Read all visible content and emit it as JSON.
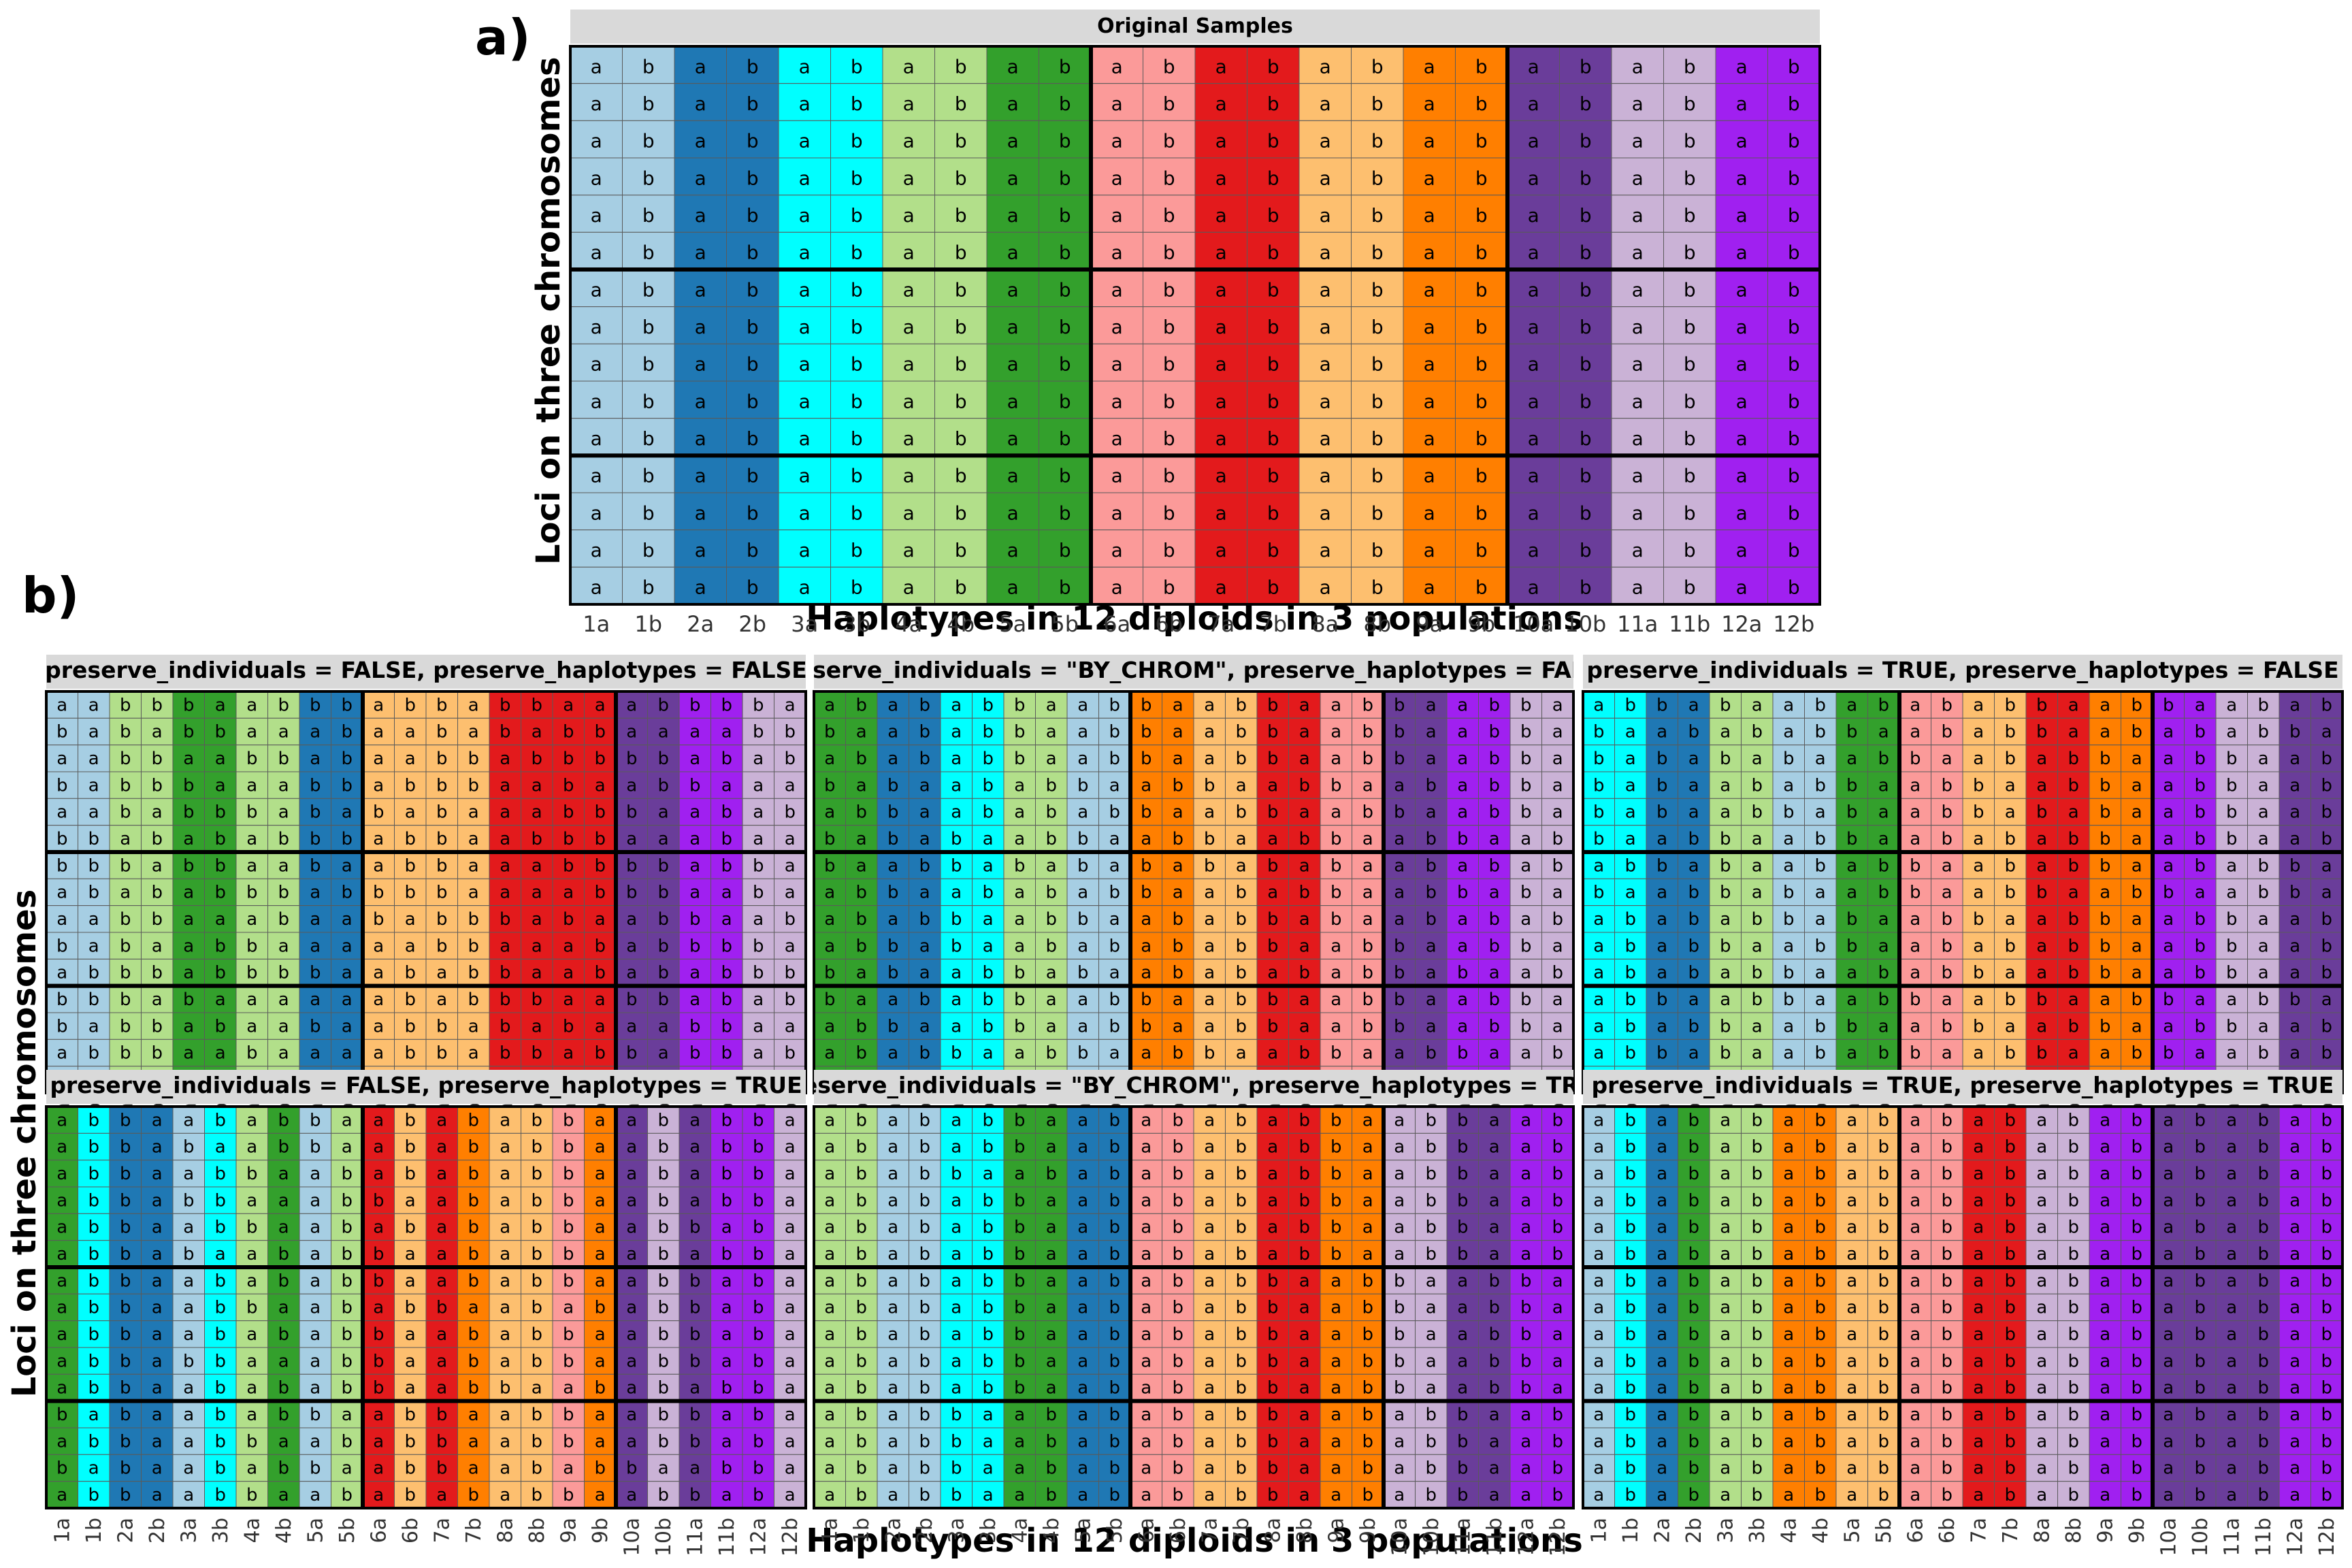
{
  "labels": {
    "panel_a_tag": "a)",
    "panel_b_tag": "b)",
    "xlabel": "Haplotypes in 12 diploids in 3 populations",
    "ylabel": "Loci on three chromosomes"
  },
  "colors": {
    "diploid_fill": [
      "#a6cee3",
      "#1f78b4",
      "#00ffff",
      "#b2df8a",
      "#33a02c",
      "#fb9a99",
      "#e31a1c",
      "#fdbf6f",
      "#ff7f00",
      "#6a3d9a",
      "#cab2d6",
      "#a020f0"
    ],
    "grid_line": "#5a5a5a",
    "thick_line": "#000000",
    "strip_fill": "#d9d9d9"
  },
  "chart_data": [
    {
      "type": "heatmap",
      "panel": "a",
      "title": "Original Samples",
      "xlabel": "Haplotypes in 12 diploids in 3 populations",
      "ylabel": "Loci on three chromosomes",
      "x": [
        "1a",
        "1b",
        "2a",
        "2b",
        "3a",
        "3b",
        "4a",
        "4b",
        "5a",
        "5b",
        "6a",
        "6b",
        "7a",
        "7b",
        "8a",
        "8b",
        "9a",
        "9b",
        "10a",
        "10b",
        "11a",
        "11b",
        "12a",
        "12b"
      ],
      "chromosomes": 3,
      "loci_per_chromosome": [
        6,
        5,
        4
      ],
      "population_boundaries_after_diploid": [
        5,
        9
      ],
      "fill_diploid": [
        1,
        1,
        2,
        2,
        3,
        3,
        4,
        4,
        5,
        5,
        6,
        6,
        7,
        7,
        8,
        8,
        9,
        9,
        10,
        10,
        11,
        11,
        12,
        12
      ],
      "letters": [
        "abababababababababababab",
        "abababababababababababab",
        "abababababababababababab",
        "abababababababababababab",
        "abababababababababababab",
        "abababababababababababab",
        "abababababababababababab",
        "abababababababababababab",
        "abababababababababababab",
        "abababababababababababab",
        "abababababababababababab",
        "abababababababababababab",
        "abababababababababababab",
        "abababababababababababab",
        "abababababababababababab"
      ]
    },
    {
      "type": "heatmap",
      "panel": "b",
      "title": "preserve_individuals = FALSE, preserve_haplotypes = FALSE",
      "x": [
        "1a",
        "1b",
        "2a",
        "2b",
        "3a",
        "3b",
        "4a",
        "4b",
        "5a",
        "5b",
        "6a",
        "6b",
        "7a",
        "7b",
        "8a",
        "8b",
        "9a",
        "9b",
        "10a",
        "10b",
        "11a",
        "11b",
        "12a",
        "12b"
      ],
      "chromosomes": 3,
      "loci_per_chromosome": [
        6,
        5,
        4
      ],
      "population_boundaries_after_diploid": [
        5,
        9
      ],
      "fill_diploid": [
        1,
        1,
        4,
        4,
        5,
        5,
        4,
        4,
        2,
        2,
        8,
        8,
        8,
        8,
        7,
        7,
        7,
        7,
        10,
        10,
        12,
        12,
        11,
        11
      ],
      "letters": [
        "aabbbaabbbabbabbaaabbbba",
        "bababbaaabaabababbaaaabb",
        "aabbaabbabaabbabbbbbabab",
        "babbbaaabbabbbaabaabbaaa",
        "aababbbabababaaabbbaabab",
        "bbabababbbabbaabbbaaabaa",
        "bbbabbaabaabbaaabbbbabba",
        "abababbbabbbbaaaabbbaaba",
        "aabbaaabaababbbabaabbaab",
        "babaabbaaaaabbaaababbbba",
        "abbbabbbbaababbaabababbb",
        "bbbabaaaaaababbbaabbabab",
        "babbabaabaabbababaaabbaa",
        "abbbaabaaaabbabbabbabbab",
        "bababaabbaababbbbaaabbaa"
      ]
    },
    {
      "type": "heatmap",
      "panel": "b",
      "title": "preserve_individuals = \"BY_CHROM\", preserve_haplotypes = FALSE",
      "x": [
        "1a",
        "1b",
        "2a",
        "2b",
        "3a",
        "3b",
        "4a",
        "4b",
        "5a",
        "5b",
        "6a",
        "6b",
        "7a",
        "7b",
        "8a",
        "8b",
        "9a",
        "9b",
        "10a",
        "10b",
        "11a",
        "11b",
        "12a",
        "12b"
      ],
      "chromosomes": 3,
      "loci_per_chromosome": [
        6,
        5,
        4
      ],
      "population_boundaries_after_diploid": [
        5,
        9
      ],
      "fill_diploid": [
        5,
        5,
        2,
        2,
        3,
        3,
        4,
        4,
        1,
        1,
        9,
        9,
        8,
        8,
        7,
        7,
        6,
        6,
        10,
        10,
        12,
        12,
        11,
        11
      ],
      "letters": [
        "abababbaabbaabbaabbaabba",
        "baababbaabbaabbaabbaabba",
        "abababbaabbaabbaabbaabba",
        "babaababbaabbaabbaababba",
        "abbaabababbaabbaabbaabba",
        "bababaabbaabbaabbaabbaab",
        "baabbababababababaababab",
        "abbaabababbaababbaabbaba",
        "ababbaabbaababbabaababab",
        "abbabaababababbaabbaabba",
        "babaabbabaababababbabaab",
        "baababbaabbaabbaabbaabba",
        "abbaabbaabbaabbaabbaabba",
        "ababbaabbaabbaabbaabbaab",
        "babaabbababaabbaabbaabba"
      ]
    },
    {
      "type": "heatmap",
      "panel": "b",
      "title": "preserve_individuals = TRUE, preserve_haplotypes = FALSE",
      "x": [
        "1a",
        "1b",
        "2a",
        "2b",
        "3a",
        "3b",
        "4a",
        "4b",
        "5a",
        "5b",
        "6a",
        "6b",
        "7a",
        "7b",
        "8a",
        "8b",
        "9a",
        "9b",
        "10a",
        "10b",
        "11a",
        "11b",
        "12a",
        "12b"
      ],
      "chromosomes": 3,
      "loci_per_chromosome": [
        6,
        5,
        4
      ],
      "population_boundaries_after_diploid": [
        5,
        9
      ],
      "fill_diploid": [
        3,
        3,
        2,
        2,
        4,
        4,
        1,
        1,
        5,
        5,
        6,
        6,
        8,
        8,
        7,
        7,
        9,
        9,
        12,
        12,
        11,
        11,
        10,
        10
      ],
      "letters": [
        "abbabaababababbaabbaabab",
        "baabababbaababbaabababba",
        "babababaabbaababbaabbaab",
        "babaababbaabbaabbaabbaab",
        "babaabbabaabbababaabbaab",
        "baabbaabbaabababbaabbaab",
        "abbabaababbaababbaababba",
        "baabbabaabbaabbaabbaabba",
        "abababbabaabbaabbaabbaab",
        "ababbaabbaabababbaabbaab",
        "abababbaababbaabbaabbaab",
        "abbaabbaabbaabbaabbaabba",
        "ababbaabbaabbaabbaabbaab",
        "abbabaababbaabbaabbaabab",
        "baabbaabbaabbaabbaabbaab"
      ]
    },
    {
      "type": "heatmap",
      "panel": "b",
      "title": "preserve_individuals = FALSE, preserve_haplotypes = TRUE",
      "x": [
        "1a",
        "1b",
        "2a",
        "2b",
        "3a",
        "3b",
        "4a",
        "4b",
        "5a",
        "5b",
        "6a",
        "6b",
        "7a",
        "7b",
        "8a",
        "8b",
        "9a",
        "9b",
        "10a",
        "10b",
        "11a",
        "11b",
        "12a",
        "12b"
      ],
      "chromosomes": 3,
      "loci_per_chromosome": [
        6,
        5,
        4
      ],
      "population_boundaries_after_diploid": [
        5,
        9
      ],
      "fill_diploid": [
        5,
        3,
        2,
        2,
        1,
        3,
        4,
        5,
        1,
        4,
        7,
        8,
        7,
        9,
        8,
        8,
        6,
        9,
        10,
        11,
        10,
        12,
        12,
        11
      ],
      "letters": [
        "abbaababbaabababbaababba",
        "abbabaabbaabababbaababba",
        "abbaabbaababababbaababba",
        "abbabbaaabbaababbaababba",
        "abbaabbaababababbaabbaba",
        "abbabaababbaababbaababba",
        "abbaabababbaababbaabbaba",
        "abbaabbaababbaabababbaba",
        "abbaabababbaababbaabbaba",
        "abbabbaaabbaababbaabbaba",
        "abbaabababbaabbaabababba",
        "babaababbaabbaabbaabbaba",
        "abbaabbaababbaabbaabbaba",
        "babaababbaabbaababbaabba",
        "abbaabbaababababbaabbaba"
      ]
    },
    {
      "type": "heatmap",
      "panel": "b",
      "title": "preserve_individuals = \"BY_CHROM\", preserve_haplotypes = TRUE",
      "x": [
        "1a",
        "1b",
        "2a",
        "2b",
        "3a",
        "3b",
        "4a",
        "4b",
        "5a",
        "5b",
        "6a",
        "6b",
        "7a",
        "7b",
        "8a",
        "8b",
        "9a",
        "9b",
        "10a",
        "10b",
        "11a",
        "11b",
        "12a",
        "12b"
      ],
      "chromosomes": 3,
      "loci_per_chromosome": [
        6,
        5,
        4
      ],
      "population_boundaries_after_diploid": [
        5,
        9
      ],
      "fill_diploid": [
        4,
        4,
        1,
        1,
        3,
        3,
        5,
        5,
        2,
        2,
        6,
        6,
        8,
        8,
        7,
        7,
        9,
        9,
        11,
        11,
        10,
        10,
        12,
        12
      ],
      "letters": [
        "abababbaababababbaabbaab",
        "abababbaababababbaabbaab",
        "ababbaabababababbaabbaab",
        "abababbaababababbaabbaab",
        "abababbaababababbaabbaab",
        "abababbaababababbaabbaab",
        "abababbaabababbaabbaabba",
        "abababbaabababbaabbaabba",
        "abababbaabababbaabbaabba",
        "abababbaabababbaabbaabba",
        "abababbaabababbaabbaabba",
        "ababbaababababbaababbaab",
        "ababbaababababbaababbaab",
        "ababbaababababbaababbaab",
        "ababbaababababbaababbaab"
      ]
    },
    {
      "type": "heatmap",
      "panel": "b",
      "title": "preserve_individuals = TRUE, preserve_haplotypes = TRUE",
      "x": [
        "1a",
        "1b",
        "2a",
        "2b",
        "3a",
        "3b",
        "4a",
        "4b",
        "5a",
        "5b",
        "6a",
        "6b",
        "7a",
        "7b",
        "8a",
        "8b",
        "9a",
        "9b",
        "10a",
        "10b",
        "11a",
        "11b",
        "12a",
        "12b"
      ],
      "chromosomes": 3,
      "loci_per_chromosome": [
        6,
        5,
        4
      ],
      "population_boundaries_after_diploid": [
        5,
        9
      ],
      "fill_diploid": [
        1,
        3,
        2,
        5,
        4,
        4,
        9,
        9,
        8,
        8,
        6,
        6,
        7,
        7,
        11,
        11,
        12,
        12,
        10,
        10,
        10,
        10,
        12,
        12
      ],
      "letters": [
        "abababababababababababab",
        "abababababababababababab",
        "abababababababababababab",
        "abababababababababababab",
        "abababababababababababab",
        "abababababababababababab",
        "abababababababababababab",
        "abababababababababababab",
        "abababababababababababab",
        "abababababababababababab",
        "abababababababababababab",
        "abababababababababababab",
        "abababababababababababab",
        "abababababababababababab",
        "abababababababababababab"
      ]
    }
  ]
}
